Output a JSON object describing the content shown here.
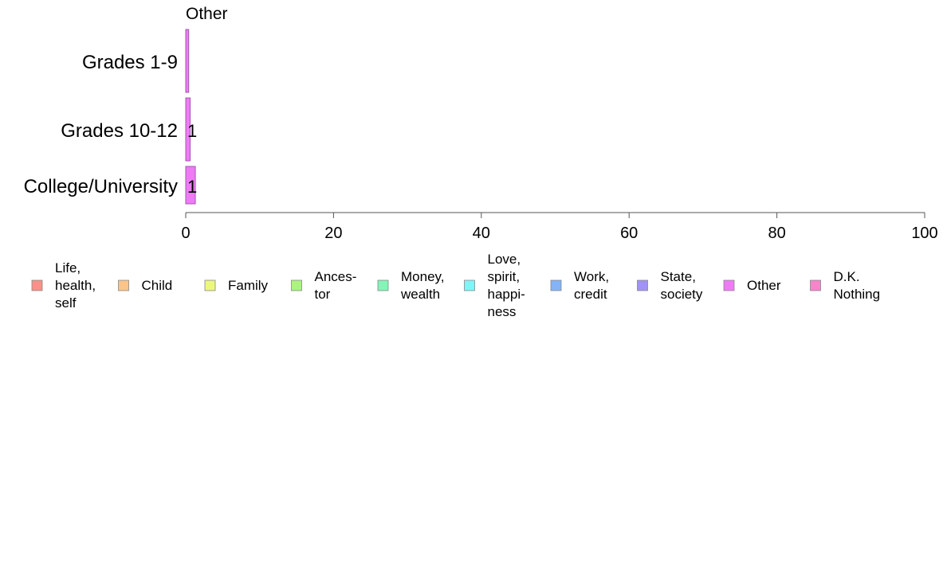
{
  "chart_data": {
    "type": "bar",
    "orientation": "horizontal",
    "title": "Other",
    "categories": [
      "Grades 1-9",
      "Grades 10-12",
      "College/University"
    ],
    "values": [
      0.4,
      0.6,
      1.3
    ],
    "data_labels": [
      "",
      "1",
      "1"
    ],
    "xlim": [
      0,
      100
    ],
    "xticks": [
      0,
      20,
      40,
      60,
      80,
      100
    ],
    "xlabel": "",
    "ylabel": "",
    "grid": false,
    "bar_color": "#ee7bf5",
    "bar_stroke": "#a655b0",
    "legend_position": "bottom",
    "legend": [
      {
        "lines": [
          "Life,",
          "health,",
          "self"
        ],
        "color": "#f9918a"
      },
      {
        "lines": [
          "Child"
        ],
        "color": "#fcc488"
      },
      {
        "lines": [
          "Family"
        ],
        "color": "#ecf77e"
      },
      {
        "lines": [
          "Ances-",
          "tor"
        ],
        "color": "#aaf57e"
      },
      {
        "lines": [
          "Money,",
          "wealth"
        ],
        "color": "#84f5b7"
      },
      {
        "lines": [
          "Love,",
          "spirit,",
          "happi-",
          "ness"
        ],
        "color": "#7ef6f6"
      },
      {
        "lines": [
          "Work,",
          "credit"
        ],
        "color": "#84b4f7"
      },
      {
        "lines": [
          "State,",
          "society"
        ],
        "color": "#a093f5"
      },
      {
        "lines": [
          "Other"
        ],
        "color": "#ee7bf5"
      },
      {
        "lines": [
          "D.K.",
          "Nothing"
        ],
        "color": "#f884c9"
      }
    ]
  }
}
